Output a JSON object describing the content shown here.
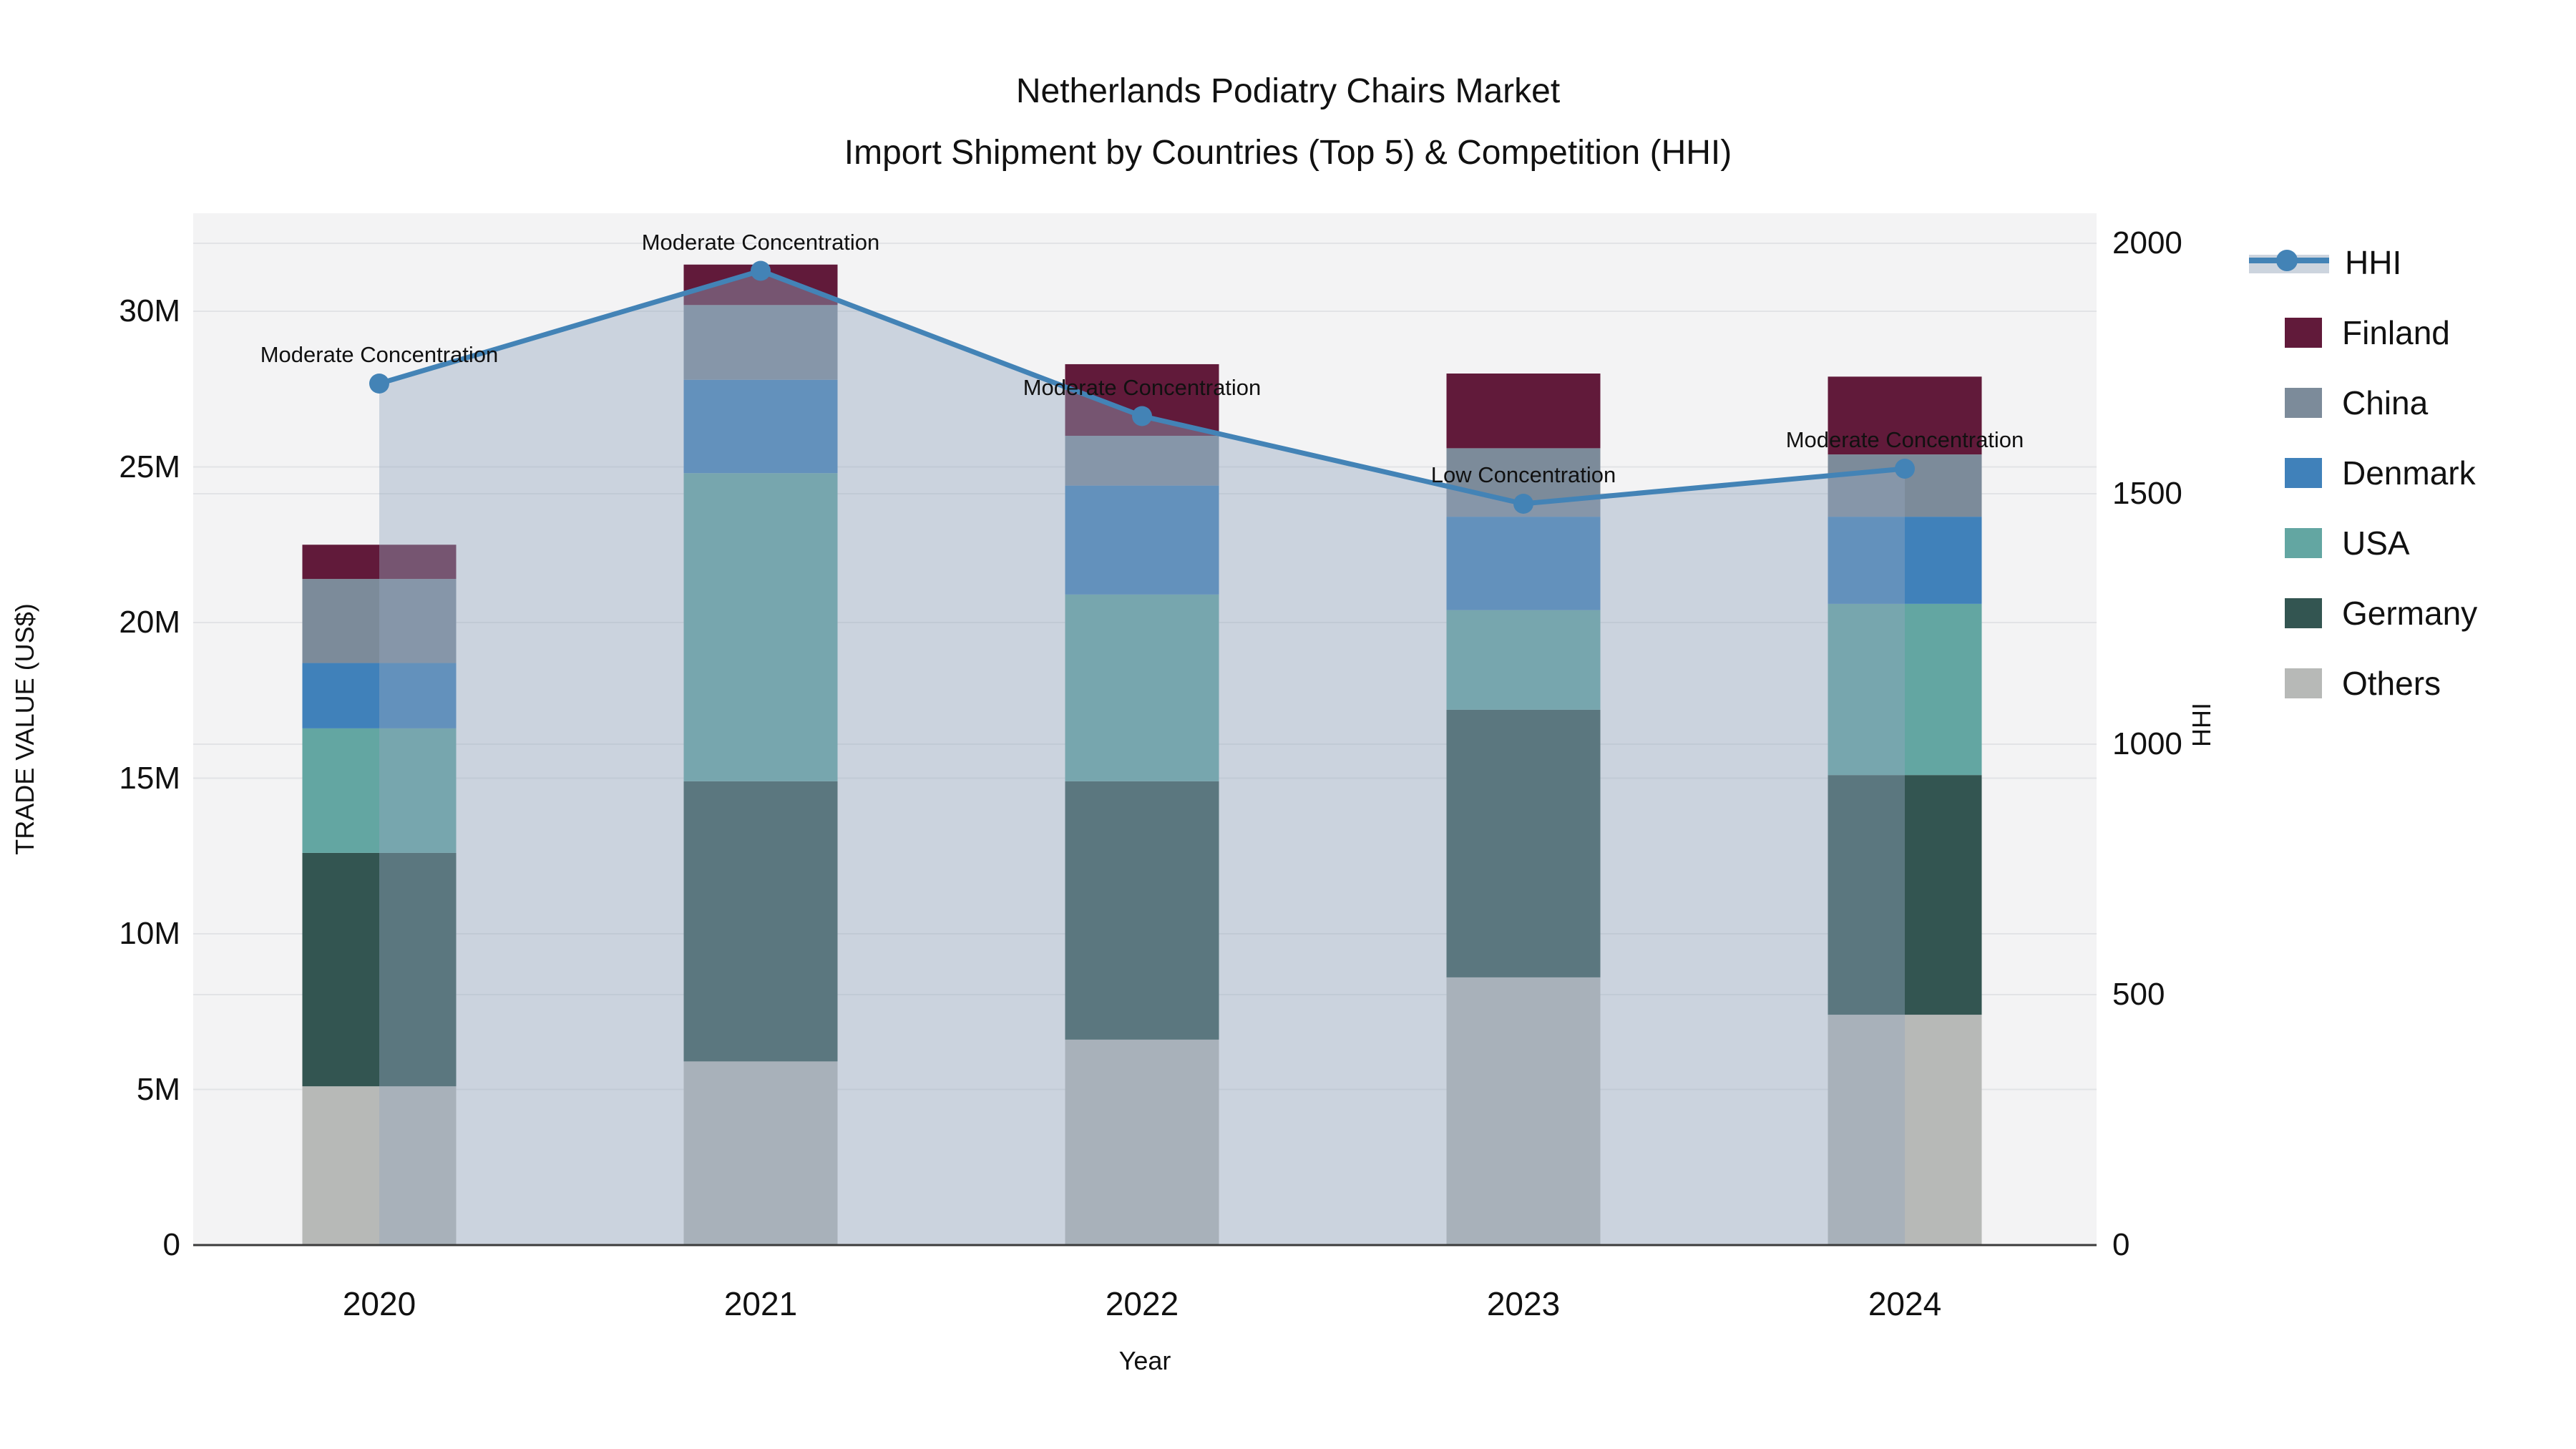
{
  "title": {
    "line1": "Netherlands Podiatry Chairs Market",
    "line2": "Import Shipment by Countries (Top 5) & Competition (HHI)"
  },
  "axes": {
    "left": {
      "title": "TRADE VALUE (US$)",
      "tick_labels": [
        "0",
        "5M",
        "10M",
        "15M",
        "20M",
        "25M",
        "30M"
      ],
      "tick_values": [
        0,
        5,
        10,
        15,
        20,
        25,
        30
      ]
    },
    "right": {
      "title": "HHI",
      "tick_labels": [
        "0",
        "500",
        "1000",
        "1500",
        "2000"
      ],
      "tick_values": [
        0,
        500,
        1000,
        1500,
        2000
      ]
    },
    "x": {
      "title": "Year",
      "categories": [
        "2020",
        "2021",
        "2022",
        "2023",
        "2024"
      ]
    }
  },
  "legend": [
    {
      "label": "HHI",
      "type": "line",
      "color": "#4383b6"
    },
    {
      "label": "Finland",
      "type": "box",
      "color": "#611a3a"
    },
    {
      "label": "China",
      "type": "box",
      "color": "#7c8b9a"
    },
    {
      "label": "Denmark",
      "type": "box",
      "color": "#4081ba"
    },
    {
      "label": "USA",
      "type": "box",
      "color": "#63a6a2"
    },
    {
      "label": "Germany",
      "type": "box",
      "color": "#335551"
    },
    {
      "label": "Others",
      "type": "box",
      "color": "#b7b9b7"
    }
  ],
  "chart_data": {
    "type": "bar+line",
    "title": "Netherlands Podiatry Chairs Market — Import Shipment by Countries (Top 5) & Competition (HHI)",
    "categories": [
      "2020",
      "2021",
      "2022",
      "2023",
      "2024"
    ],
    "bar_unit": "M US$",
    "stack_order_bottom_to_top": [
      "Others",
      "Germany",
      "USA",
      "Denmark",
      "China",
      "Finland"
    ],
    "series": [
      {
        "name": "Others",
        "color": "#b7b9b7",
        "values": [
          5.1,
          5.9,
          6.6,
          8.6,
          7.4
        ]
      },
      {
        "name": "Germany",
        "color": "#335551",
        "values": [
          7.5,
          9.0,
          8.3,
          8.6,
          7.7
        ]
      },
      {
        "name": "USA",
        "color": "#63a6a2",
        "values": [
          4.0,
          9.9,
          6.0,
          3.2,
          5.5
        ]
      },
      {
        "name": "Denmark",
        "color": "#4081ba",
        "values": [
          2.1,
          3.0,
          3.5,
          3.0,
          2.8
        ]
      },
      {
        "name": "China",
        "color": "#7c8b9a",
        "values": [
          2.7,
          2.4,
          1.6,
          2.2,
          2.0
        ]
      },
      {
        "name": "Finland",
        "color": "#611a3a",
        "values": [
          1.1,
          1.3,
          2.3,
          2.4,
          2.5
        ]
      }
    ],
    "bar_totals": [
      22.5,
      31.5,
      28.3,
      28.0,
      27.9
    ],
    "line_series": {
      "name": "HHI",
      "color": "#4383b6",
      "area_fill": "rgba(148,166,190,0.42)",
      "values": [
        1720,
        1945,
        1655,
        1480,
        1550
      ],
      "annotations": [
        "Moderate Concentration",
        "Moderate Concentration",
        "Moderate Concentration",
        "Low Concentration",
        "Moderate Concentration"
      ]
    },
    "xlabel": "Year",
    "ylabel_left": "TRADE VALUE (US$)",
    "ylabel_right": "HHI",
    "ylim_left_M": [
      0,
      33.2
    ],
    "ylim_right": [
      0,
      2060
    ],
    "grid": true,
    "legend_position": "right",
    "plot_background": "#f3f3f4",
    "gridline_color": "#e2e3e6",
    "axisline_color": "#3b3b3b"
  }
}
